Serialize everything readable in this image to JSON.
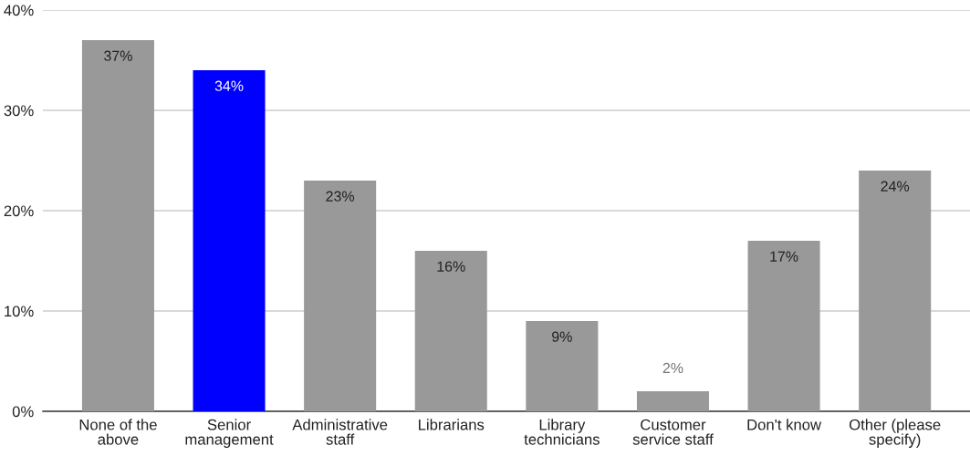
{
  "chart_data": {
    "type": "bar",
    "categories": [
      "None of the above",
      "Senior management",
      "Administrative staff",
      "Librarians",
      "Library technicians",
      "Customer service staff",
      "Don't know",
      "Other (please specify)"
    ],
    "values": [
      37,
      34,
      23,
      16,
      9,
      2,
      17,
      24
    ],
    "value_labels": [
      "37%",
      "34%",
      "23%",
      "16%",
      "9%",
      "2%",
      "17%",
      "24%"
    ],
    "colors": [
      "#999999",
      "#0000ff",
      "#999999",
      "#999999",
      "#999999",
      "#999999",
      "#999999",
      "#999999"
    ],
    "ylim": [
      0,
      40
    ],
    "yticks": [
      {
        "value": 0,
        "label": "0%"
      },
      {
        "value": 10,
        "label": "10%"
      },
      {
        "value": 20,
        "label": "20%"
      },
      {
        "value": 30,
        "label": "30%"
      },
      {
        "value": 40,
        "label": "40%"
      }
    ],
    "grid": "y"
  }
}
